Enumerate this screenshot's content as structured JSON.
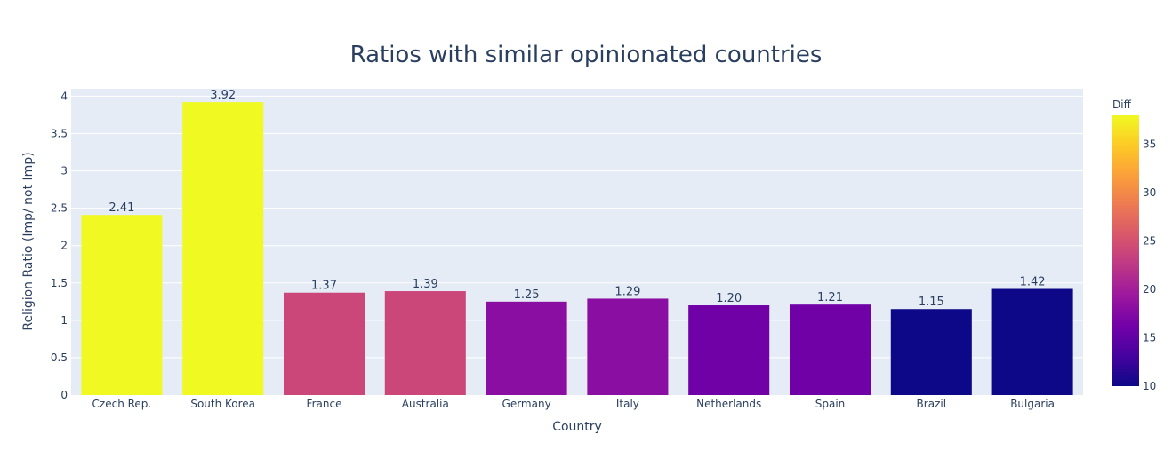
{
  "chart_data": {
    "type": "bar",
    "title": "Ratios with similar opinionated countries",
    "xlabel": "Country",
    "ylabel": "Religion Ratio (Imp/ not Imp)",
    "categories": [
      "Czech Rep.",
      "South Korea",
      "France",
      "Australia",
      "Germany",
      "Italy",
      "Netherlands",
      "Spain",
      "Brazil",
      "Bulgaria"
    ],
    "values": [
      2.41,
      3.92,
      1.37,
      1.39,
      1.25,
      1.29,
      1.2,
      1.21,
      1.15,
      1.42
    ],
    "value_labels": [
      "2.41",
      "3.92",
      "1.37",
      "1.39",
      "1.25",
      "1.29",
      "1.20",
      "1.21",
      "1.15",
      "1.42"
    ],
    "color_values": [
      38,
      38,
      24,
      24,
      18,
      18,
      16,
      16,
      10,
      10
    ],
    "ylim": [
      0,
      4.1
    ],
    "yticks": [
      0,
      0.5,
      1,
      1.5,
      2,
      2.5,
      3,
      3.5,
      4
    ],
    "ytick_labels": [
      "0",
      "0.5",
      "1",
      "1.5",
      "2",
      "2.5",
      "3",
      "3.5",
      "4"
    ],
    "grid": true,
    "colorbar": {
      "title": "Diff",
      "range": [
        10,
        38
      ],
      "ticks": [
        10,
        15,
        20,
        25,
        30,
        35
      ],
      "tick_labels": [
        "10",
        "15",
        "20",
        "25",
        "30",
        "35"
      ],
      "colorscale": [
        "#0d0887",
        "#46039f",
        "#7201a8",
        "#9c179e",
        "#bd3786",
        "#d8576b",
        "#ed7953",
        "#fb9f3a",
        "#fdca26",
        "#f0f921"
      ]
    },
    "plot_bgcolor": "#e5ecf6"
  }
}
